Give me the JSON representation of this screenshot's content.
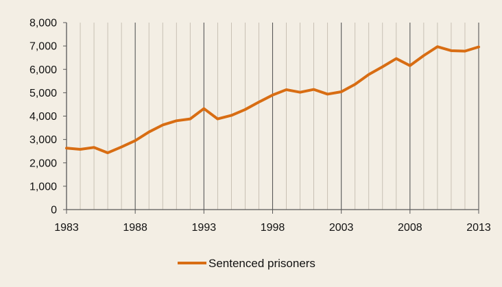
{
  "chart_data": {
    "type": "line",
    "title": "",
    "xlabel": "",
    "ylabel": "",
    "xlim": [
      1983,
      2013
    ],
    "ylim": [
      0,
      8000
    ],
    "x_ticks": [
      1983,
      1988,
      1993,
      1998,
      2003,
      2008,
      2013
    ],
    "y_ticks": [
      0,
      1000,
      2000,
      3000,
      4000,
      5000,
      6000,
      7000,
      8000
    ],
    "x_tick_labels": [
      "1983",
      "1988",
      "1993",
      "1998",
      "2003",
      "2008",
      "2013"
    ],
    "y_tick_labels": [
      "0",
      "1,000",
      "2,000",
      "3,000",
      "4,000",
      "5,000",
      "6,000",
      "7,000",
      "8,000"
    ],
    "grid": true,
    "legend_position": "bottom",
    "colors": {
      "background": "#f3eee4",
      "series": "#d86d13",
      "grid_minor": "#bdb5a8",
      "grid_major": "#575757",
      "axis": "#575757",
      "text": "#111111"
    },
    "x": [
      1983,
      1984,
      1985,
      1986,
      1987,
      1988,
      1989,
      1990,
      1991,
      1992,
      1993,
      1994,
      1995,
      1996,
      1997,
      1998,
      1999,
      2000,
      2001,
      2002,
      2003,
      2004,
      2005,
      2006,
      2007,
      2008,
      2009,
      2010,
      2011,
      2012,
      2013
    ],
    "series": [
      {
        "name": "Sentenced prisoners",
        "values": [
          2630,
          2580,
          2660,
          2430,
          2680,
          2950,
          3320,
          3620,
          3800,
          3880,
          4320,
          3880,
          4030,
          4280,
          4600,
          4900,
          5130,
          5020,
          5140,
          4940,
          5040,
          5360,
          5780,
          6110,
          6460,
          6160,
          6590,
          6970,
          6800,
          6780,
          6960
        ]
      }
    ]
  }
}
